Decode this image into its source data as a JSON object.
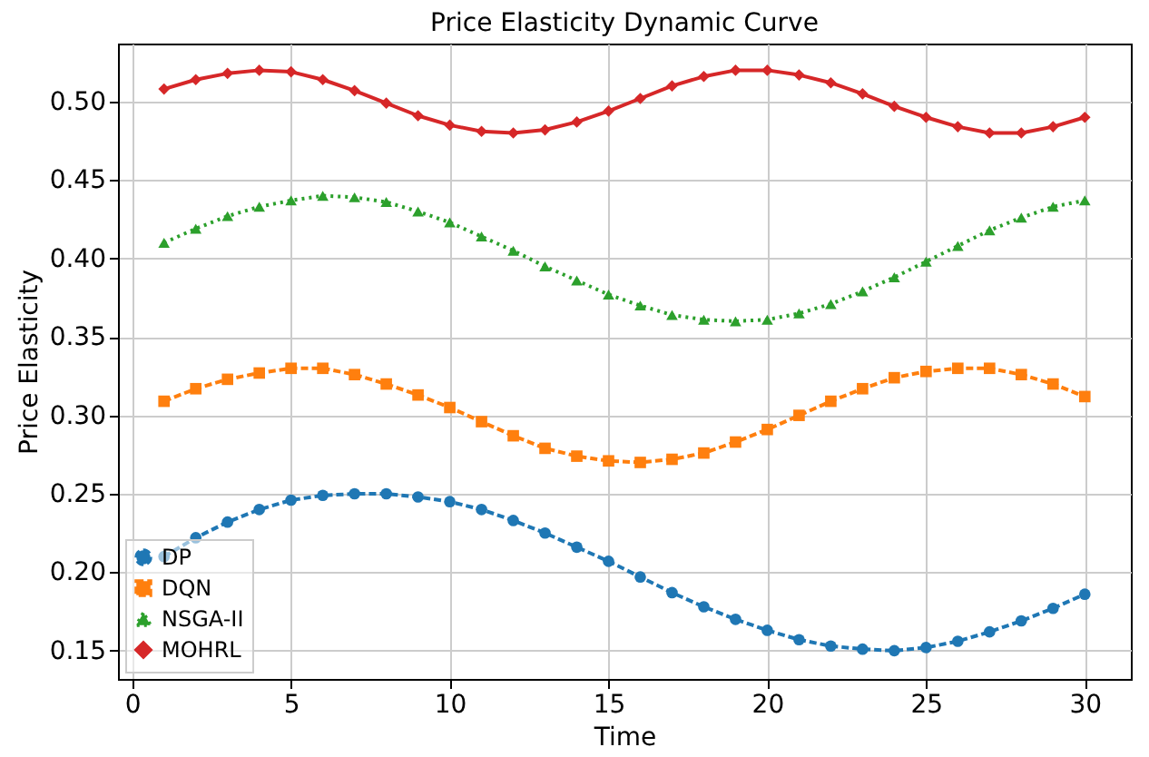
{
  "chart_data": {
    "type": "line",
    "title": "Price Elasticity Dynamic Curve",
    "xlabel": "Time",
    "ylabel": "Price Elasticity",
    "x": [
      1,
      2,
      3,
      4,
      5,
      6,
      7,
      8,
      9,
      10,
      11,
      12,
      13,
      14,
      15,
      16,
      17,
      18,
      19,
      20,
      21,
      22,
      23,
      24,
      25,
      26,
      27,
      28,
      29,
      30
    ],
    "series": [
      {
        "name": "DP",
        "color": "#1f77b4",
        "marker": "circle",
        "line_style": "dashed",
        "values": [
          0.21,
          0.222,
          0.232,
          0.24,
          0.246,
          0.249,
          0.25,
          0.25,
          0.248,
          0.245,
          0.24,
          0.233,
          0.225,
          0.216,
          0.207,
          0.197,
          0.187,
          0.178,
          0.17,
          0.163,
          0.157,
          0.153,
          0.151,
          0.15,
          0.152,
          0.156,
          0.162,
          0.169,
          0.177,
          0.186
        ]
      },
      {
        "name": "DQN",
        "color": "#ff7f0e",
        "marker": "square",
        "line_style": "dashed",
        "values": [
          0.309,
          0.317,
          0.323,
          0.327,
          0.33,
          0.33,
          0.326,
          0.32,
          0.313,
          0.305,
          0.296,
          0.287,
          0.279,
          0.274,
          0.271,
          0.27,
          0.272,
          0.276,
          0.283,
          0.291,
          0.3,
          0.309,
          0.317,
          0.324,
          0.328,
          0.33,
          0.33,
          0.326,
          0.32,
          0.312
        ]
      },
      {
        "name": "NSGA-II",
        "color": "#2ca02c",
        "marker": "triangle",
        "line_style": "dotted",
        "values": [
          0.41,
          0.419,
          0.427,
          0.433,
          0.437,
          0.44,
          0.439,
          0.436,
          0.43,
          0.423,
          0.414,
          0.405,
          0.395,
          0.386,
          0.377,
          0.37,
          0.364,
          0.361,
          0.36,
          0.361,
          0.365,
          0.371,
          0.379,
          0.388,
          0.398,
          0.408,
          0.418,
          0.426,
          0.433,
          0.437
        ]
      },
      {
        "name": "MOHRL",
        "color": "#d62728",
        "marker": "diamond",
        "line_style": "solid",
        "values": [
          0.508,
          0.514,
          0.518,
          0.52,
          0.519,
          0.514,
          0.507,
          0.499,
          0.491,
          0.485,
          0.481,
          0.48,
          0.482,
          0.487,
          0.494,
          0.502,
          0.51,
          0.516,
          0.52,
          0.52,
          0.517,
          0.512,
          0.505,
          0.497,
          0.49,
          0.484,
          0.48,
          0.48,
          0.484,
          0.49
        ]
      }
    ],
    "xlim": [
      -0.45,
      31.45
    ],
    "xticks": [
      0,
      5,
      10,
      15,
      20,
      25,
      30
    ],
    "ylim": [
      0.132,
      0.537
    ],
    "yticks": [
      0.15,
      {
        "value": 0.2,
        "label": "0.20"
      },
      0.25,
      {
        "value": 0.3,
        "label": "0.30"
      },
      0.35,
      {
        "value": 0.4,
        "label": "0.40"
      },
      0.45,
      {
        "value": 0.5,
        "label": "0.50"
      }
    ],
    "grid": true,
    "legend": "bottom left"
  }
}
